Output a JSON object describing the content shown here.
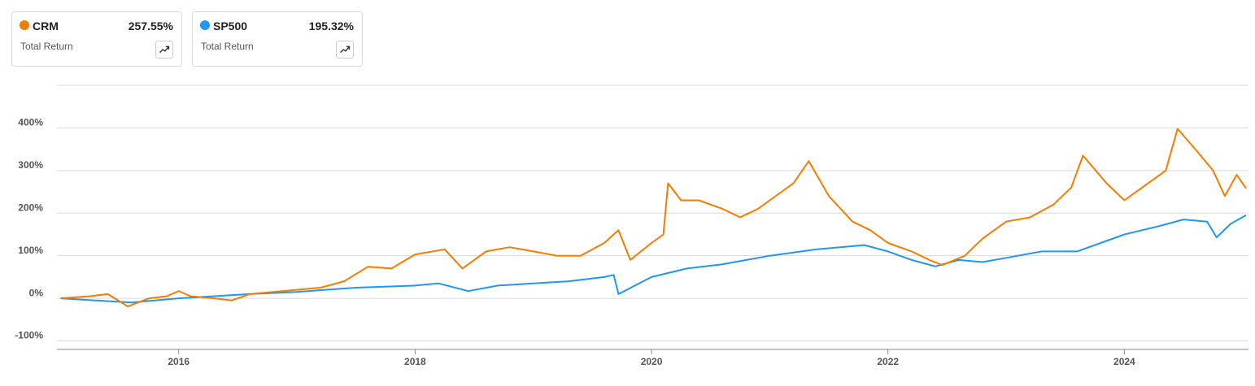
{
  "chart_data": {
    "type": "line",
    "series": [
      {
        "name": "CRM",
        "color": "#f57c00",
        "metric": "Total Return",
        "total_return": 257.55,
        "total_return_label": "257.55%",
        "x": [
          2015.0,
          2015.25,
          2015.4,
          2015.57,
          2015.75,
          2015.9,
          2016.0,
          2016.1,
          2016.3,
          2016.45,
          2016.6,
          2016.8,
          2017.0,
          2017.2,
          2017.4,
          2017.6,
          2017.8,
          2018.0,
          2018.25,
          2018.4,
          2018.6,
          2018.8,
          2019.0,
          2019.2,
          2019.4,
          2019.6,
          2019.72,
          2019.82,
          2020.0,
          2020.1,
          2020.14,
          2020.25,
          2020.4,
          2020.6,
          2020.75,
          2020.9,
          2021.0,
          2021.2,
          2021.33,
          2021.5,
          2021.7,
          2021.85,
          2022.0,
          2022.2,
          2022.35,
          2022.46,
          2022.65,
          2022.8,
          2023.0,
          2023.2,
          2023.4,
          2023.55,
          2023.65,
          2023.85,
          2024.0,
          2024.15,
          2024.35,
          2024.45,
          2024.6,
          2024.75,
          2024.85,
          2024.95,
          2025.03
        ],
        "values": [
          0,
          5,
          10,
          -19,
          0,
          5,
          17,
          5,
          0,
          -5,
          10,
          15,
          20,
          25,
          40,
          74,
          70,
          103,
          115,
          70,
          110,
          120,
          110,
          100,
          100,
          130,
          160,
          90,
          130,
          150,
          270,
          230,
          230,
          210,
          190,
          210,
          230,
          270,
          322,
          240,
          180,
          160,
          130,
          110,
          90,
          78,
          100,
          140,
          180,
          190,
          220,
          260,
          335,
          270,
          230,
          260,
          300,
          398,
          350,
          300,
          240,
          290,
          257.55
        ]
      },
      {
        "name": "SP500",
        "color": "#2196f3",
        "metric": "Total Return",
        "total_return": 195.32,
        "total_return_label": "195.32%",
        "x": [
          2015.0,
          2015.3,
          2015.6,
          2016.0,
          2016.3,
          2016.6,
          2017.0,
          2017.5,
          2018.0,
          2018.2,
          2018.45,
          2018.7,
          2019.0,
          2019.3,
          2019.6,
          2019.68,
          2019.72,
          2020.0,
          2020.3,
          2020.6,
          2021.0,
          2021.4,
          2021.8,
          2022.0,
          2022.2,
          2022.4,
          2022.6,
          2022.8,
          2023.0,
          2023.3,
          2023.6,
          2023.8,
          2024.0,
          2024.3,
          2024.5,
          2024.7,
          2024.78,
          2024.9,
          2025.03
        ],
        "values": [
          0,
          -5,
          -10,
          0,
          5,
          10,
          15,
          25,
          30,
          35,
          17,
          30,
          35,
          40,
          50,
          55,
          10,
          50,
          70,
          80,
          100,
          115,
          125,
          110,
          90,
          75,
          90,
          85,
          95,
          110,
          110,
          130,
          150,
          170,
          185,
          180,
          143,
          175,
          195.32
        ]
      }
    ],
    "xlim": [
      2014.97,
      2025.05
    ],
    "xticks": [
      2016,
      2018,
      2020,
      2022,
      2024
    ],
    "ylim": [
      -120,
      500
    ],
    "yticks": [
      {
        "value": -100,
        "label": "-100%"
      },
      {
        "value": 0,
        "label": "0%"
      },
      {
        "value": 100,
        "label": "100%"
      },
      {
        "value": 200,
        "label": "200%"
      },
      {
        "value": 300,
        "label": "300%"
      },
      {
        "value": 400,
        "label": "400%"
      }
    ],
    "grid": true
  }
}
